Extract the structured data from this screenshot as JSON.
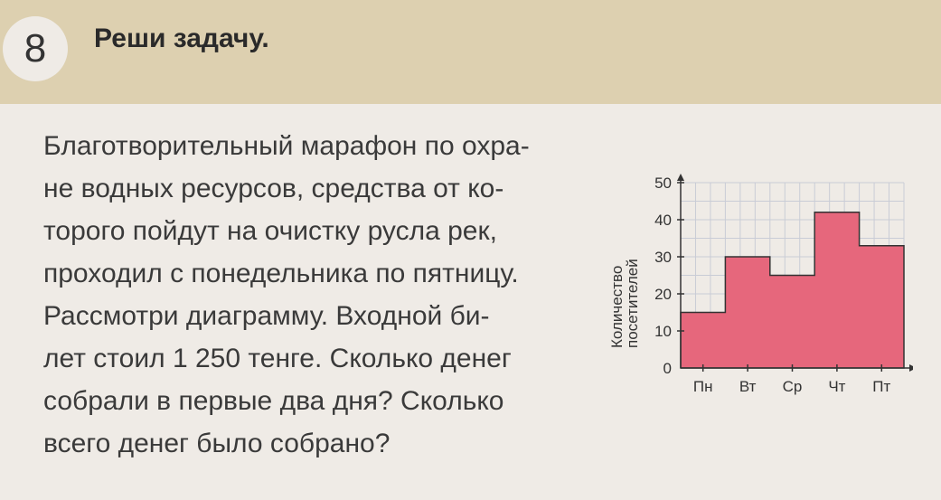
{
  "task": {
    "number": "8",
    "title": "Реши задачу."
  },
  "problem": {
    "lines": [
      "Благотворительный марафон по охра-",
      "не водных ресурсов, средства от ко-",
      "торого пойдут на очистку русла рек,",
      "проходил с понедельника по пятницу.",
      "Рассмотри диаграмму. Входной би-",
      "лет стоил 1 250 тенге. Сколько денег",
      "собрали в первые два дня? Сколько",
      "всего денег было собрано?"
    ]
  },
  "chart_data": {
    "type": "bar",
    "categories": [
      "Пн",
      "Вт",
      "Ср",
      "Чт",
      "Пт"
    ],
    "values": [
      15,
      30,
      25,
      42,
      33
    ],
    "ylabel_line1": "Количество",
    "ylabel_line2": "посетителей",
    "yticks": [
      "0",
      "10",
      "20",
      "30",
      "40",
      "50"
    ],
    "ylim": [
      0,
      50
    ],
    "grid": true,
    "bar_color": "#e6677c"
  }
}
